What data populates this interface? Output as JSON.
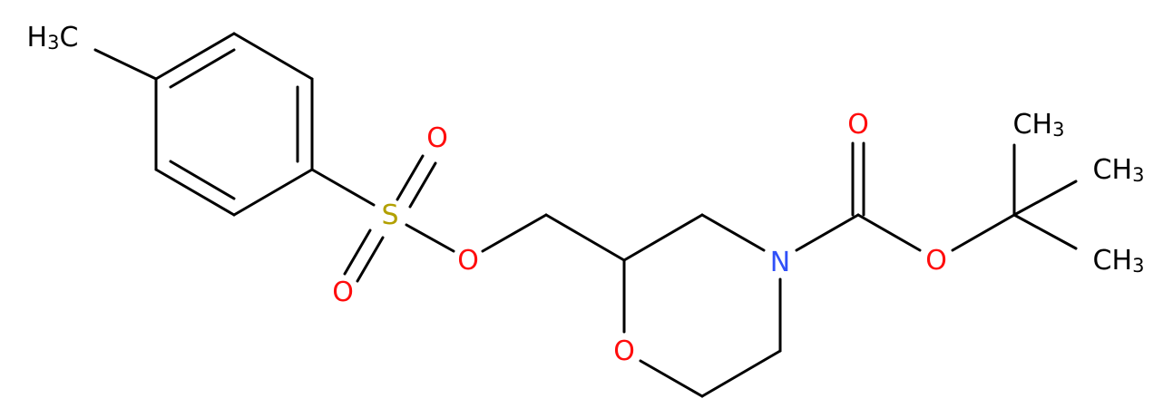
{
  "atoms": [
    {
      "parts": [
        "H",
        "3",
        "C"
      ]
    },
    {
      "parts": [
        "S"
      ]
    },
    {
      "parts": [
        "O"
      ]
    },
    {
      "parts": [
        "O"
      ]
    },
    {
      "parts": [
        "O"
      ]
    },
    {
      "parts": [
        "O"
      ]
    },
    {
      "parts": [
        "N"
      ]
    },
    {
      "parts": [
        "O"
      ]
    },
    {
      "parts": [
        "O"
      ]
    },
    {
      "parts": [
        "CH",
        "3"
      ]
    },
    {
      "parts": [
        "CH",
        "3"
      ]
    },
    {
      "parts": [
        "CH",
        "3"
      ]
    }
  ]
}
